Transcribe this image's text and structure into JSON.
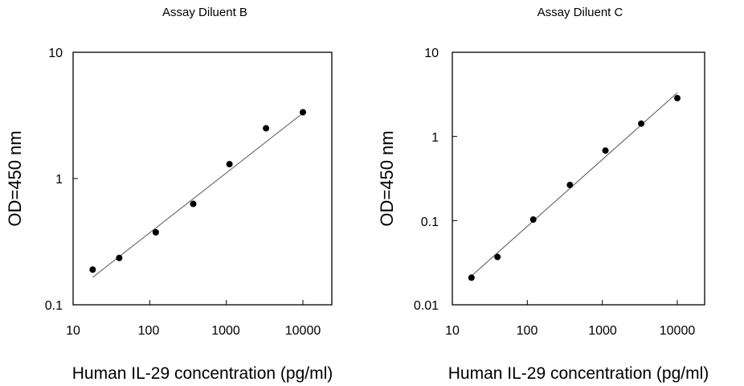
{
  "chart_data": [
    {
      "type": "scatter",
      "title": "Assay Diluent B",
      "xlabel": "Human IL-29 concentration (pg/ml)",
      "ylabel": "OD=450 nm",
      "x_scale": "log",
      "y_scale": "log",
      "xlim": [
        10,
        20000
      ],
      "ylim": [
        0.1,
        10
      ],
      "x_ticks": [
        10,
        100,
        1000,
        10000
      ],
      "y_ticks": [
        0.1,
        1,
        10
      ],
      "x_tick_labels": [
        "10",
        "100",
        "1000",
        "10000"
      ],
      "y_tick_labels": [
        "0.1",
        "1",
        "10"
      ],
      "grid": false,
      "legend": "none",
      "series": [
        {
          "x": [
            18,
            40,
            120,
            370,
            1100,
            3300,
            10000
          ],
          "y": [
            0.19,
            0.235,
            0.375,
            0.63,
            1.3,
            2.5,
            3.35
          ]
        }
      ],
      "fit_line": {
        "x": [
          18,
          10000
        ],
        "y": [
          0.165,
          3.3
        ]
      }
    },
    {
      "type": "scatter",
      "title": "Assay Diluent C",
      "xlabel": "Human IL-29 concentration (pg/ml)",
      "ylabel": "OD=450 nm",
      "x_scale": "log",
      "y_scale": "log",
      "xlim": [
        10,
        20000
      ],
      "ylim": [
        0.01,
        10
      ],
      "x_ticks": [
        10,
        100,
        1000,
        10000
      ],
      "y_ticks": [
        0.01,
        0.1,
        1,
        10
      ],
      "x_tick_labels": [
        "10",
        "100",
        "1000",
        "10000"
      ],
      "y_tick_labels": [
        "0.01",
        "0.1",
        "1",
        "10"
      ],
      "grid": false,
      "legend": "none",
      "series": [
        {
          "x": [
            18,
            40,
            120,
            370,
            1100,
            3300,
            10000
          ],
          "y": [
            0.021,
            0.037,
            0.103,
            0.265,
            0.68,
            1.42,
            2.85
          ]
        }
      ],
      "fit_line": {
        "x": [
          18,
          10000
        ],
        "y": [
          0.022,
          3.3
        ]
      }
    }
  ],
  "colors": {
    "marker": "#000000",
    "axis": "#000000",
    "fit_line": "#555555",
    "background": "#ffffff"
  }
}
